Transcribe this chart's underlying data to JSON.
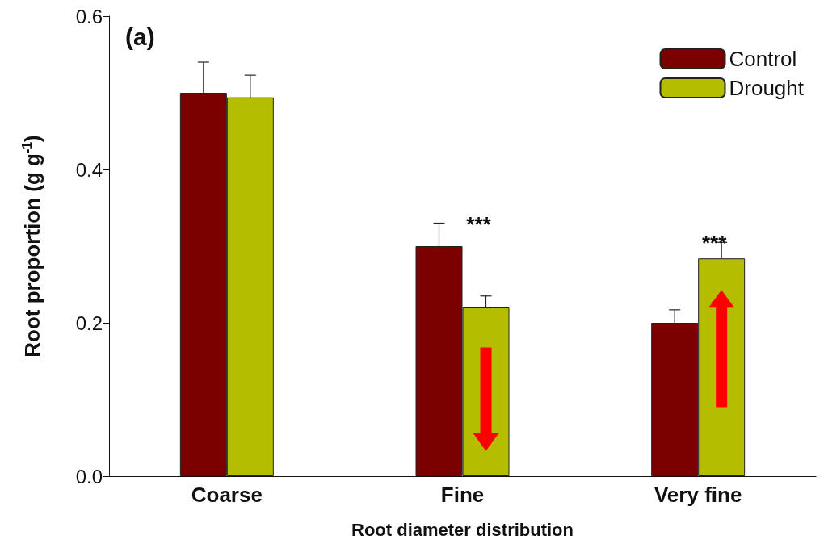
{
  "chart_data": {
    "type": "bar",
    "xlabel": "Root diameter distribution",
    "ylabel": "Root proportion (g g$^{-1}$)",
    "categories": [
      "Coarse",
      "Fine",
      "Very fine"
    ],
    "series": [
      {
        "name": "Control",
        "color": "#7b0000",
        "values": [
          0.5,
          0.3,
          0.2
        ],
        "errors": [
          [
            0.5,
            0.54
          ],
          [
            0.3,
            0.33
          ],
          [
            0.2,
            0.217
          ]
        ]
      },
      {
        "name": "Drought",
        "color": "#b5bd00",
        "values": [
          0.494,
          0.22,
          0.284
        ],
        "errors": [
          [
            0.494,
            0.523
          ],
          [
            0.22,
            0.235
          ],
          [
            0.284,
            0.305
          ]
        ]
      }
    ],
    "ylim": [
      0,
      0.6
    ],
    "yticks": [
      {
        "value": 0,
        "label": "0.0"
      },
      {
        "value": 0.2,
        "label": "0.2"
      },
      {
        "value": 0.4,
        "label": "0.4"
      },
      {
        "value": 0.6,
        "label": "0.6"
      }
    ],
    "grid": false,
    "legend": "top right",
    "annotations": [
      "(a)",
      "***",
      "***"
    ]
  }
}
